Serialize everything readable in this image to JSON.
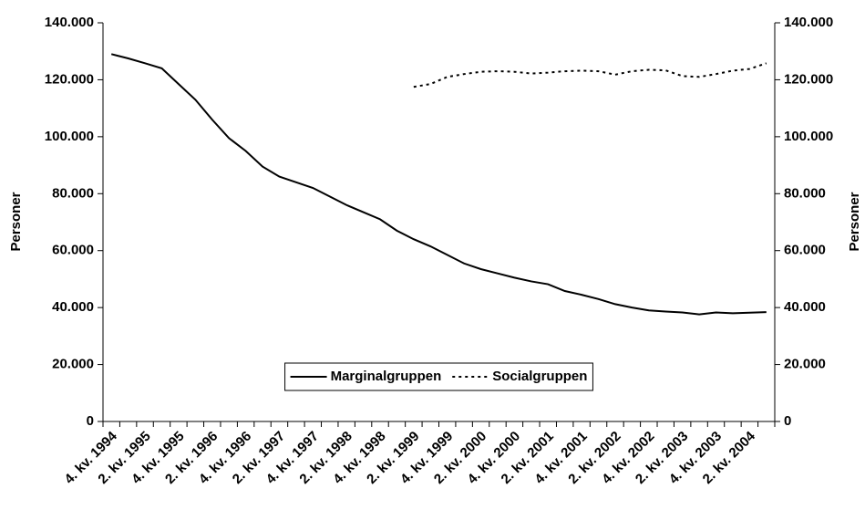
{
  "chart_data": {
    "type": "line",
    "y_label": "Personer",
    "y2_label": "Personer",
    "categories": [
      "4. kv. 1994",
      null,
      "2. kv. 1995",
      null,
      "4. kv. 1995",
      null,
      "2. kv. 1996",
      null,
      "4. kv. 1996",
      null,
      "2. kv. 1997",
      null,
      "4. kv. 1997",
      null,
      "2. kv. 1998",
      null,
      "4. kv. 1998",
      null,
      "2. kv. 1999",
      null,
      "4. kv. 1999",
      null,
      "2. kv. 2000",
      null,
      "4. kv. 2000",
      null,
      "2. kv. 2001",
      null,
      "4. kv. 2001",
      null,
      "2. kv. 2002",
      null,
      "4. kv. 2002",
      null,
      "2. kv. 2003",
      null,
      "4. kv. 2003",
      null,
      "2. kv. 2004",
      null
    ],
    "series": [
      {
        "name": "Marginalgruppen",
        "color": "#000000",
        "line_style": "solid",
        "values": [
          129000,
          127500,
          125800,
          124000,
          118500,
          113000,
          106000,
          99500,
          95000,
          89500,
          86000,
          84000,
          82000,
          79000,
          76000,
          73500,
          71000,
          67000,
          64000,
          61500,
          58500,
          55500,
          53500,
          52000,
          50500,
          49200,
          48200,
          45800,
          44500,
          43000,
          41200,
          40000,
          39000,
          38600,
          38300,
          37600,
          38300,
          38000,
          38200,
          38400
        ]
      },
      {
        "name": "Socialgruppen",
        "color": "#000000",
        "line_style": "dotted",
        "axis": "y2",
        "values": [
          null,
          null,
          null,
          null,
          null,
          null,
          null,
          null,
          null,
          null,
          null,
          null,
          null,
          null,
          null,
          null,
          null,
          null,
          117500,
          118500,
          121000,
          122000,
          122800,
          123000,
          122800,
          122200,
          122500,
          123000,
          123200,
          123000,
          121800,
          123000,
          123500,
          123300,
          121300,
          121000,
          122000,
          123200,
          123800,
          125800
        ]
      }
    ],
    "ylim": [
      0,
      140000
    ],
    "yticks": [
      0,
      {
        "value": 20000,
        "label": "20.000"
      },
      {
        "value": 40000,
        "label": "40.000"
      },
      {
        "value": 60000,
        "label": "60.000"
      },
      {
        "value": 80000,
        "label": "80.000"
      },
      {
        "value": 100000,
        "label": "100.000"
      },
      {
        "value": 120000,
        "label": "120.000"
      },
      {
        "value": 140000,
        "label": "140.000"
      }
    ],
    "y2lim": [
      0,
      140000
    ],
    "y2ticks": [
      0,
      {
        "value": 20000,
        "label": "20.000"
      },
      {
        "value": 40000,
        "label": "40.000"
      },
      {
        "value": 60000,
        "label": "60.000"
      },
      {
        "value": 80000,
        "label": "80.000"
      },
      {
        "value": 100000,
        "label": "100.000"
      },
      {
        "value": 120000,
        "label": "120.000"
      },
      {
        "value": 140000,
        "label": "140.000"
      }
    ],
    "grid": false,
    "legend": "lower center"
  }
}
